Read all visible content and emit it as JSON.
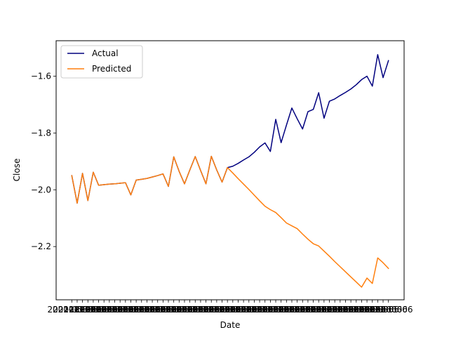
{
  "chart_data": {
    "type": "line",
    "xlabel": "Date",
    "ylabel": "Close",
    "ylim": [
      -2.3875,
      -1.475
    ],
    "yticks": [
      -2.2,
      -2.0,
      -1.8,
      -1.6
    ],
    "ytick_labels": [
      "−2.2",
      "−2.0",
      "−1.8",
      "−1.6"
    ],
    "x_tick_label": "2021-05-06",
    "x_tick_count": 60,
    "legend": {
      "placement": "top-left",
      "entries": [
        "Actual",
        "Predicted"
      ]
    },
    "grid": false,
    "x_index": [
      0,
      1,
      2,
      3,
      4,
      5,
      6,
      7,
      8,
      9,
      10,
      11,
      12,
      13,
      14,
      15,
      16,
      17,
      18,
      19,
      20,
      21,
      22,
      23,
      24,
      25,
      26,
      27,
      28,
      29,
      30,
      31,
      32,
      33,
      34,
      35,
      36,
      37,
      38,
      39,
      40,
      41,
      42,
      43,
      44,
      45,
      46,
      47,
      48,
      49,
      50,
      51,
      52,
      53,
      54,
      55,
      56,
      57,
      58,
      59
    ],
    "series": [
      {
        "name": "Actual",
        "color": "#00007f",
        "values": [
          -1.95,
          -2.047,
          -1.942,
          -2.038,
          -1.938,
          -1.984,
          -1.982,
          -1.98,
          -1.979,
          -1.977,
          -1.975,
          -2.018,
          -1.966,
          -1.963,
          -1.96,
          -1.955,
          -1.95,
          -1.944,
          -1.988,
          -1.884,
          -1.935,
          -1.979,
          -1.93,
          -1.883,
          -1.932,
          -1.979,
          -1.882,
          -1.93,
          -1.973,
          -1.922,
          -1.917,
          -1.907,
          -1.895,
          -1.884,
          -1.868,
          -1.849,
          -1.835,
          -1.865,
          -1.752,
          -1.834,
          -1.772,
          -1.712,
          -1.75,
          -1.786,
          -1.725,
          -1.717,
          -1.658,
          -1.748,
          -1.688,
          -1.68,
          -1.668,
          -1.657,
          -1.645,
          -1.63,
          -1.612,
          -1.6,
          -1.635,
          -1.524,
          -1.605,
          -1.545
        ]
      },
      {
        "name": "Predicted",
        "color": "#ff7f0e",
        "values": [
          -1.95,
          -2.047,
          -1.942,
          -2.038,
          -1.938,
          -1.984,
          -1.982,
          -1.98,
          -1.979,
          -1.977,
          -1.975,
          -2.018,
          -1.966,
          -1.963,
          -1.96,
          -1.955,
          -1.95,
          -1.944,
          -1.988,
          -1.884,
          -1.935,
          -1.979,
          -1.93,
          -1.883,
          -1.932,
          -1.979,
          -1.882,
          -1.93,
          -1.973,
          -1.922,
          -1.941,
          -1.961,
          -1.98,
          -1.999,
          -2.019,
          -2.039,
          -2.058,
          -2.07,
          -2.08,
          -2.098,
          -2.117,
          -2.127,
          -2.137,
          -2.156,
          -2.174,
          -2.19,
          -2.198,
          -2.216,
          -2.234,
          -2.253,
          -2.271,
          -2.289,
          -2.307,
          -2.325,
          -2.343,
          -2.311,
          -2.33,
          -2.24,
          -2.257,
          -2.277
        ]
      }
    ]
  }
}
